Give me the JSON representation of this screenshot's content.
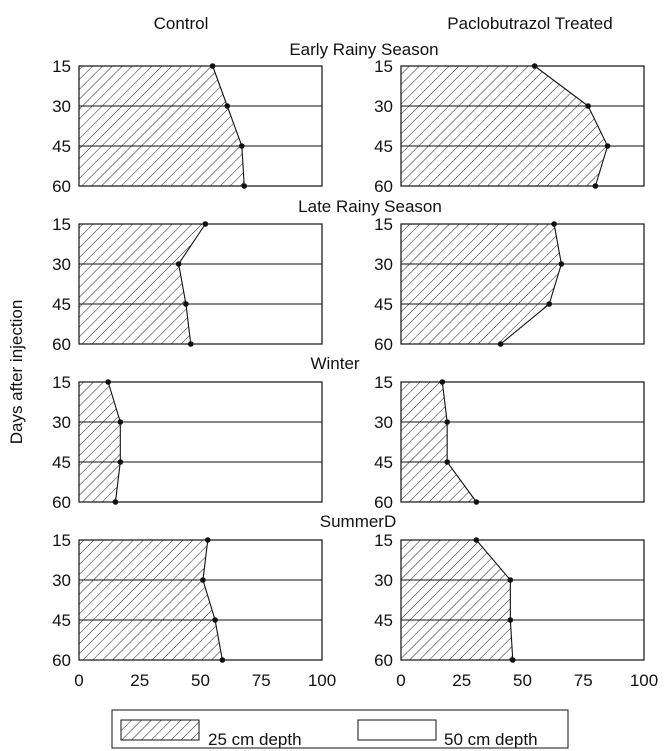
{
  "chart_data": {
    "type": "area",
    "column_titles": [
      "Control",
      "Paclobutrazol Treated"
    ],
    "ylabel": "Days after injection",
    "y_ticks": [
      15,
      30,
      45,
      60
    ],
    "x_ticks": [
      0,
      25,
      50,
      75,
      100
    ],
    "xlim": [
      0,
      100
    ],
    "legend": {
      "placement": "bottom-center",
      "items": [
        {
          "label": "25 cm depth",
          "pattern": "hatched"
        },
        {
          "label": "50 cm depth",
          "pattern": "blank"
        }
      ]
    },
    "panels": [
      {
        "season": "Early Rainy Season",
        "control": {
          "y": [
            15,
            30,
            45,
            60
          ],
          "values": [
            55,
            61,
            67,
            68
          ]
        },
        "treated": {
          "y": [
            15,
            30,
            45,
            60
          ],
          "values": [
            55,
            77,
            85,
            80
          ]
        }
      },
      {
        "season": "Late Rainy Season",
        "control": {
          "y": [
            15,
            30,
            45,
            60
          ],
          "values": [
            52,
            41,
            44,
            46
          ]
        },
        "treated": {
          "y": [
            15,
            30,
            45,
            60
          ],
          "values": [
            63,
            66,
            61,
            41
          ]
        }
      },
      {
        "season": "Winter",
        "control": {
          "y": [
            15,
            30,
            45,
            60
          ],
          "values": [
            12,
            17,
            17,
            15
          ]
        },
        "treated": {
          "y": [
            15,
            30,
            45,
            60
          ],
          "values": [
            17,
            19,
            19,
            31
          ]
        }
      },
      {
        "season": "SummerD",
        "control": {
          "y": [
            15,
            30,
            45,
            60
          ],
          "values": [
            53,
            51,
            56,
            59
          ]
        },
        "treated": {
          "y": [
            15,
            30,
            45,
            60
          ],
          "values": [
            31,
            45,
            45,
            46
          ]
        }
      }
    ]
  }
}
